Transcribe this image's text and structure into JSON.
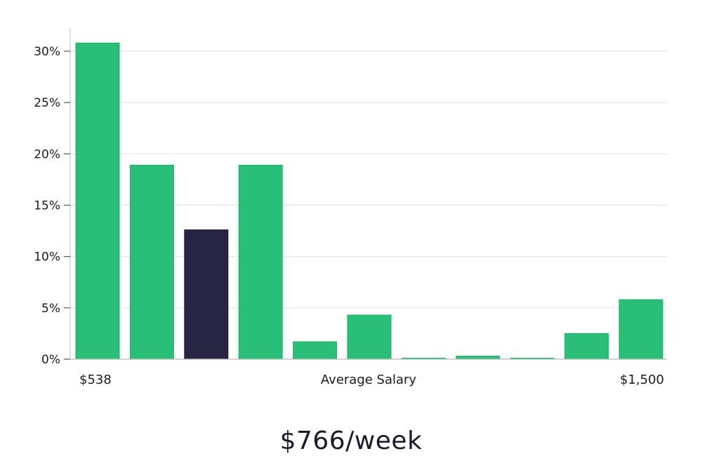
{
  "chart_data": {
    "type": "bar",
    "title": "",
    "xlabel": "Average Salary",
    "ylabel": "",
    "x_min_label": "$538",
    "x_max_label": "$1,500",
    "ylim": [
      0,
      32
    ],
    "yticks": [
      0,
      5,
      10,
      15,
      20,
      25,
      30
    ],
    "ytick_labels": [
      "0%",
      "5%",
      "10%",
      "15%",
      "20%",
      "25%",
      "30%"
    ],
    "values": [
      30.8,
      18.9,
      12.6,
      18.9,
      1.7,
      4.3,
      0.1,
      0.3,
      0.1,
      2.5,
      5.8
    ],
    "highlight_index": 2,
    "colors": {
      "bar": "#2abf78",
      "highlight": "#272444",
      "grid": "#e2e2e2",
      "axis": "#cfcfcf"
    }
  },
  "summary": {
    "value": "$766/week"
  }
}
